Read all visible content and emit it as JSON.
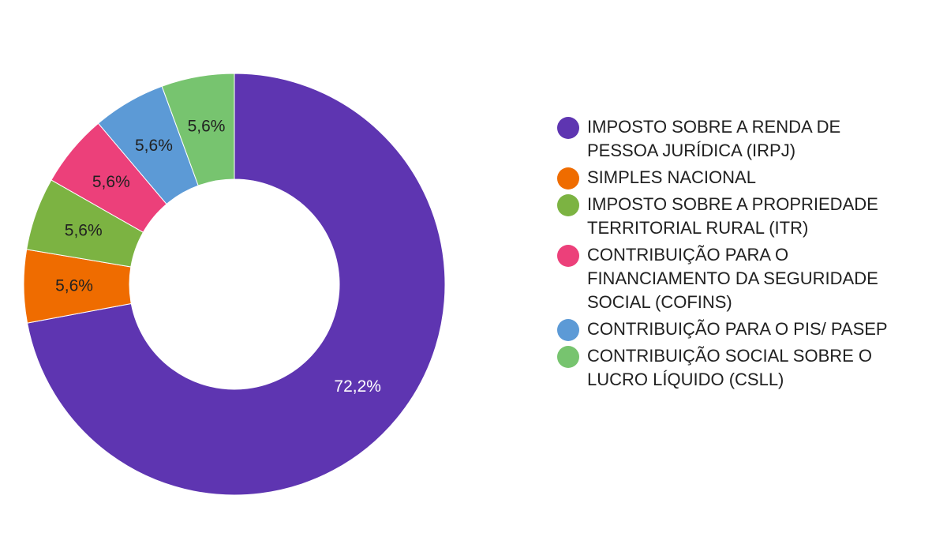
{
  "chart_data": {
    "type": "pie",
    "categories": [
      "IMPOSTO SOBRE A RENDA DE PESSOA JURÍDICA (IRPJ)",
      "SIMPLES NACIONAL",
      "IMPOSTO SOBRE A PROPRIEDADE TERRITORIAL RURAL (ITR)",
      "CONTRIBUIÇÃO PARA O FINANCIAMENTO DA SEGURIDADE SOCIAL (COFINS)",
      "CONTRIBUIÇÃO PARA O PIS/ PASEP",
      "CONTRIBUIÇÃO SOCIAL SOBRE O LUCRO LÍQUIDO (CSLL)"
    ],
    "values": [
      72.2,
      5.6,
      5.6,
      5.6,
      5.6,
      5.6
    ],
    "labels": [
      "72,2%",
      "5,6%",
      "5,6%",
      "5,6%",
      "5,6%",
      "5,6%"
    ],
    "colors": [
      "#5e35b1",
      "#ef6c00",
      "#7cb342",
      "#ec407a",
      "#5c9ad6",
      "#77c46f"
    ],
    "label_colors": [
      "#ffffff",
      "#212121",
      "#212121",
      "#212121",
      "#212121",
      "#212121"
    ],
    "donut": true,
    "legend_position": "right"
  }
}
